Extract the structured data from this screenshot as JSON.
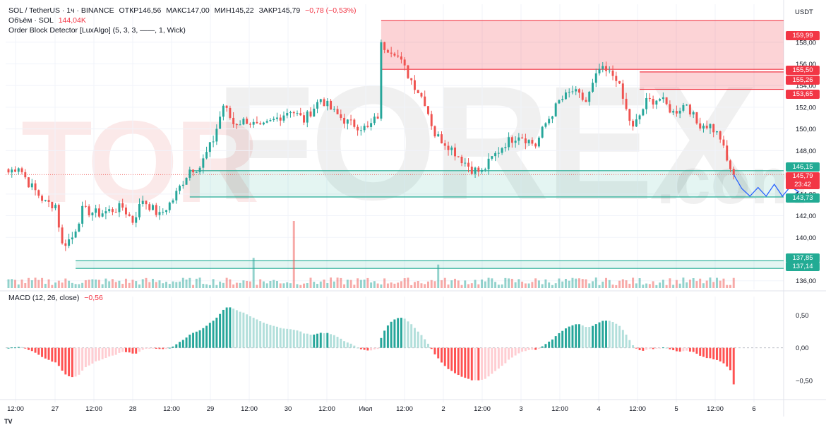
{
  "legend": {
    "symbol": "SOL / TetherUS · 1ч · BINANCE",
    "open": "ОТКР146,56",
    "high": "МАКС147,00",
    "low": "МИН145,22",
    "close": "ЗАКР145,79",
    "change": "−0,78 (−0,53%)",
    "volume_label": "Объём · SOL",
    "volume_value": "144,04K",
    "indicator": "Order Block Detector [LuxAlgo] (5, 3, 3, ——, 1, Wick)",
    "macd_label": "MACD (12, 26, close)",
    "macd_value": "−0,56"
  },
  "currency": "USDT",
  "watermark": {
    "left": "TOR",
    "right": "FOREX",
    "suffix": ".com"
  },
  "price_axis": {
    "ticks": [
      "158,00",
      "156,00",
      "154,00",
      "152,00",
      "150,00",
      "148,00",
      "144,00",
      "142,00",
      "140,00",
      "136,00"
    ],
    "levels": [
      {
        "text": "159,99",
        "kind": "red",
        "value": 159.99
      },
      {
        "text": "155,50",
        "kind": "red",
        "value": 155.5
      },
      {
        "text": "155,26",
        "kind": "red",
        "value": 155.26
      },
      {
        "text": "153,65",
        "kind": "red",
        "value": 153.65
      },
      {
        "text": "146,15",
        "kind": "green",
        "value": 146.15
      },
      {
        "text": "143,73",
        "kind": "green",
        "value": 143.73
      },
      {
        "text": "137,85",
        "kind": "green",
        "value": 137.85
      },
      {
        "text": "137,14",
        "kind": "green",
        "value": 137.14
      }
    ],
    "current_price": "145,79",
    "countdown": "23:42"
  },
  "macd_axis": {
    "ticks": [
      "0,50",
      "0,00",
      "−0,50"
    ]
  },
  "time_axis": [
    "12:00",
    "27",
    "12:00",
    "28",
    "12:00",
    "29",
    "12:00",
    "30",
    "12:00",
    "Июл",
    "12:00",
    "2",
    "12:00",
    "3",
    "12:00",
    "4",
    "12:00",
    "5",
    "12:00",
    "6"
  ],
  "colors": {
    "up": "#26a69a",
    "down": "#ef5350",
    "bear_zone": "#f23645",
    "bull_zone": "#22ab94",
    "forecast": "#2962ff"
  },
  "chart_data": [
    {
      "type": "candlestick",
      "title": "SOL / TetherUS · 1ч · BINANCE",
      "y_unit": "USDT",
      "ylim": [
        135.2,
        161.5
      ],
      "current_price": 145.79,
      "order_blocks": [
        {
          "kind": "bearish",
          "top": 159.99,
          "bottom": 155.5
        },
        {
          "kind": "bearish",
          "top": 155.26,
          "bottom": 153.65
        },
        {
          "kind": "bullish",
          "top": 146.15,
          "bottom": 143.73
        },
        {
          "kind": "bullish",
          "top": 137.85,
          "bottom": 137.14
        }
      ],
      "forecast_path": [
        145.79,
        144.5,
        143.8,
        144.6,
        143.8,
        144.9,
        143.8,
        144.7,
        144.2
      ],
      "volume_spikes": [
        {
          "at_candle": 73,
          "relative": 0.45
        },
        {
          "at_candle": 85,
          "relative": 1.0
        },
        {
          "at_candle": 128,
          "relative": 0.35
        }
      ],
      "grid": true
    },
    {
      "type": "bar",
      "title": "MACD (12, 26, close)",
      "ylim": [
        -0.75,
        0.7
      ],
      "last_value": -0.56
    }
  ]
}
